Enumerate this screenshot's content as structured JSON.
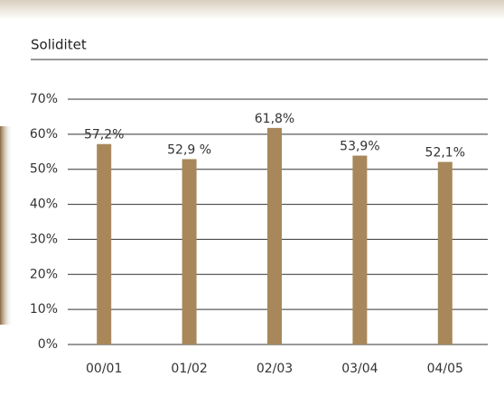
{
  "chart_data": {
    "type": "bar",
    "title": "Soliditet",
    "categories": [
      "00/01",
      "01/02",
      "02/03",
      "03/04",
      "04/05"
    ],
    "values": [
      57.2,
      52.9,
      61.8,
      53.9,
      52.1
    ],
    "value_labels": [
      "57,2%",
      "52,9 %",
      "61,8%",
      "53,9%",
      "52,1%"
    ],
    "color": "#a8885a",
    "ylim": [
      0,
      70
    ],
    "yticks": [
      {
        "value": 0,
        "label": "0%"
      },
      {
        "value": 10,
        "label": "10%"
      },
      {
        "value": 20,
        "label": "20%"
      },
      {
        "value": 30,
        "label": "30%"
      },
      {
        "value": 40,
        "label": "40%"
      },
      {
        "value": 50,
        "label": "50%"
      },
      {
        "value": 60,
        "label": "60%"
      },
      {
        "value": 70,
        "label": "70%"
      }
    ],
    "grid": true
  }
}
